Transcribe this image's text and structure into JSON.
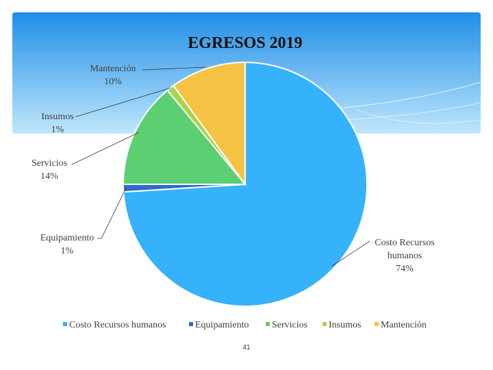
{
  "chart_data": {
    "type": "pie",
    "title": "EGRESOS 2019",
    "categories": [
      "Costo Recursos humanos",
      "Equipamiento",
      "Servicios",
      "Insumos",
      "Mantención"
    ],
    "values": [
      74,
      1,
      14,
      1,
      10
    ],
    "percent_labels": [
      "74%",
      "1%",
      "14%",
      "1%",
      "10%"
    ],
    "colors": [
      "#35b2fa",
      "#2e6bc9",
      "#5ccf73",
      "#a8d34a",
      "#f5c243"
    ],
    "legend_position": "bottom"
  },
  "colors": {
    "panel_top": "#1f8ee8",
    "panel_bottom": "#bfe6fb"
  },
  "page_number": "41"
}
